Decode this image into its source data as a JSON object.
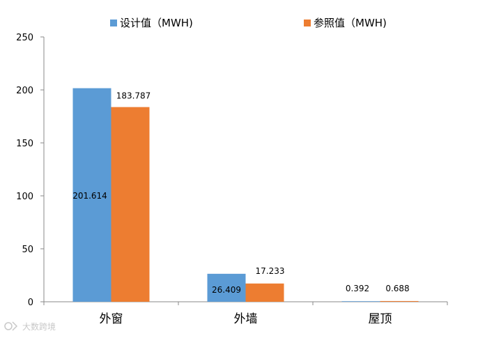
{
  "chart_data": {
    "type": "bar",
    "categories": [
      "外窗",
      "外墙",
      "屋顶"
    ],
    "series": [
      {
        "name": "设计值（MWH)",
        "values": [
          201.614,
          26.409,
          0.392
        ],
        "color": "#5b9bd5"
      },
      {
        "name": "参照值（MWH)",
        "values": [
          183.787,
          17.233,
          0.688
        ],
        "color": "#ed7d31"
      }
    ],
    "data_labels": [
      [
        "201.614",
        "26.409",
        "0.392"
      ],
      [
        "183.787",
        "17.233",
        "0.688"
      ]
    ],
    "ylim": [
      0,
      250
    ],
    "yticks": [
      0,
      50,
      100,
      150,
      200,
      250
    ],
    "ytick_labels": [
      "0",
      "50",
      "100",
      "150",
      "200",
      "250"
    ],
    "legend_position": "top",
    "grid": false
  },
  "watermark": {
    "text": "大数跨境",
    "icon": "brand-logo-icon"
  }
}
